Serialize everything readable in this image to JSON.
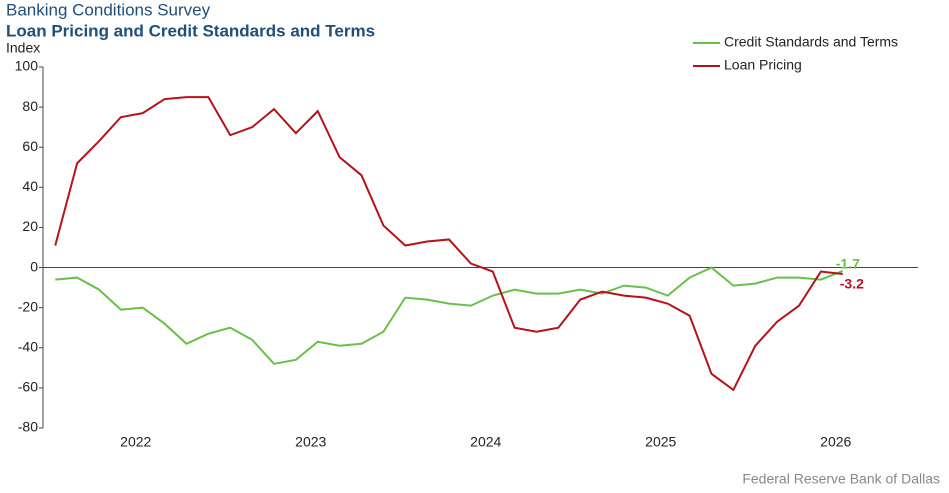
{
  "chart_data": {
    "type": "line",
    "title": "Banking Conditions Survey",
    "subtitle": "Loan Pricing and Credit Standards and Terms",
    "y_label": "Index",
    "source": "Federal Reserve Bank of Dallas",
    "x": [
      2022.04,
      2022.165,
      2022.29,
      2022.415,
      2022.54,
      2022.665,
      2022.79,
      2022.915,
      2023.04,
      2023.165,
      2023.29,
      2023.415,
      2023.54,
      2023.665,
      2023.79,
      2023.915,
      2024.04,
      2024.165,
      2024.29,
      2024.415,
      2024.54,
      2024.665,
      2024.79,
      2024.915,
      2025.04,
      2025.165,
      2025.29,
      2025.415,
      2025.54,
      2025.665,
      2025.79,
      2025.915,
      2026.04,
      2026.165,
      2026.29,
      2026.415,
      2026.54
    ],
    "series": [
      {
        "name": "Credit Standards and Terms",
        "color": "#6abf4b",
        "values": [
          -6,
          -5,
          -11,
          -21,
          -20,
          -28,
          -38,
          -33,
          -30,
          -36,
          -48,
          -46,
          -37,
          -39,
          -38,
          -32,
          -15,
          -16,
          -18,
          -19,
          -14,
          -11,
          -13,
          -13,
          -11,
          -13,
          -9,
          -10,
          -14,
          -5,
          0,
          -9,
          -8,
          -5,
          -5,
          -6,
          -1.7
        ]
      },
      {
        "name": "Loan Pricing",
        "color": "#b5121b",
        "values": [
          11,
          52,
          63,
          75,
          77,
          84,
          85,
          85,
          66,
          70,
          79,
          67,
          78,
          55,
          46,
          21,
          11,
          13,
          14,
          2,
          -2,
          -30,
          -32,
          -30,
          -16,
          -12,
          -14,
          -15,
          -18,
          -24,
          -53,
          -61,
          -39,
          -27,
          -19,
          -2,
          -3.2
        ]
      }
    ],
    "xlim": [
      2021.97,
      2026.97
    ],
    "xticks": [
      {
        "value": 2022.5,
        "label": "2022"
      },
      {
        "value": 2023.5,
        "label": "2023"
      },
      {
        "value": 2024.5,
        "label": "2024"
      },
      {
        "value": 2025.5,
        "label": "2025"
      },
      {
        "value": 2026.5,
        "label": "2026"
      }
    ],
    "ylim": [
      -80,
      100
    ],
    "yticks": [
      -80,
      -60,
      -40,
      -20,
      0,
      20,
      40,
      60,
      80,
      100
    ],
    "legend": "top-right"
  }
}
